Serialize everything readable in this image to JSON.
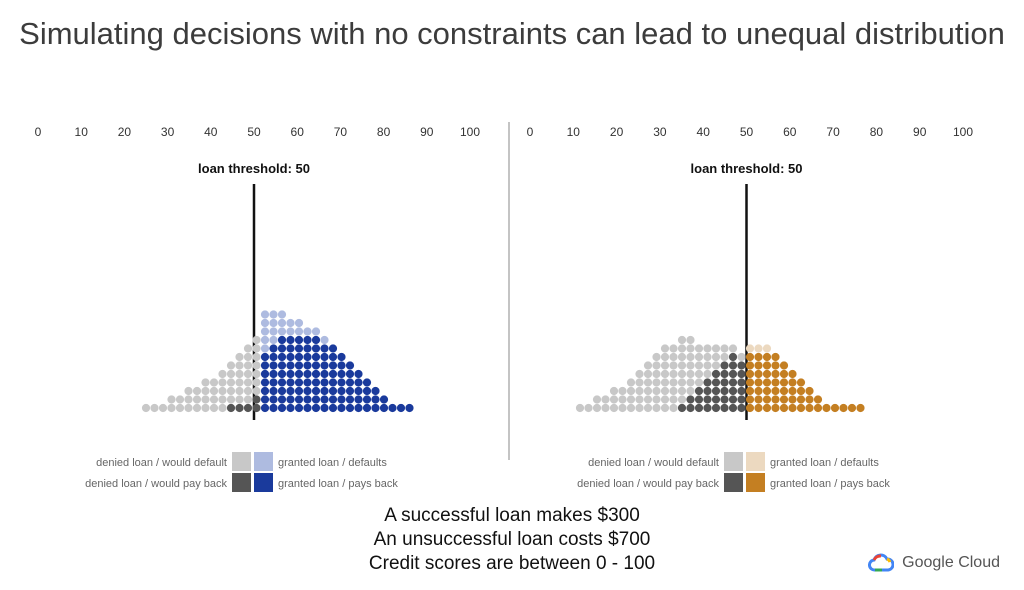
{
  "title": "Simulating decisions with no constraints can lead to unequal distribution",
  "axis_ticks": [
    "0",
    "10",
    "20",
    "30",
    "40",
    "50",
    "60",
    "70",
    "80",
    "90",
    "100"
  ],
  "panels": [
    {
      "threshold_label": "loan threshold: 50",
      "threshold": 50,
      "legend": {
        "denied_default": "denied loan / would default",
        "denied_payback": "denied loan / would pay back",
        "granted_default": "granted loan / defaults",
        "granted_payback": "granted loan / pays back"
      },
      "colors": {
        "denied_default": "#c8c8c8",
        "denied_payback": "#555555",
        "granted_default": "#aebbe0",
        "granted_payback": "#1a3a9c"
      }
    },
    {
      "threshold_label": "loan threshold: 50",
      "threshold": 50,
      "legend": {
        "denied_default": "denied loan / would default",
        "denied_payback": "denied loan / would pay back",
        "granted_default": "granted loan / defaults",
        "granted_payback": "granted loan / pays back"
      },
      "colors": {
        "denied_default": "#c8c8c8",
        "denied_payback": "#555555",
        "granted_default": "#ecd9c0",
        "granted_payback": "#c47f22"
      }
    }
  ],
  "footer": {
    "line1": "A successful loan makes $300",
    "line2": "An unsuccessful loan costs $700",
    "line3": "Credit scores are between 0 - 100"
  },
  "brand": {
    "name": "Google Cloud",
    "icon": "cloud-logo-icon"
  }
}
